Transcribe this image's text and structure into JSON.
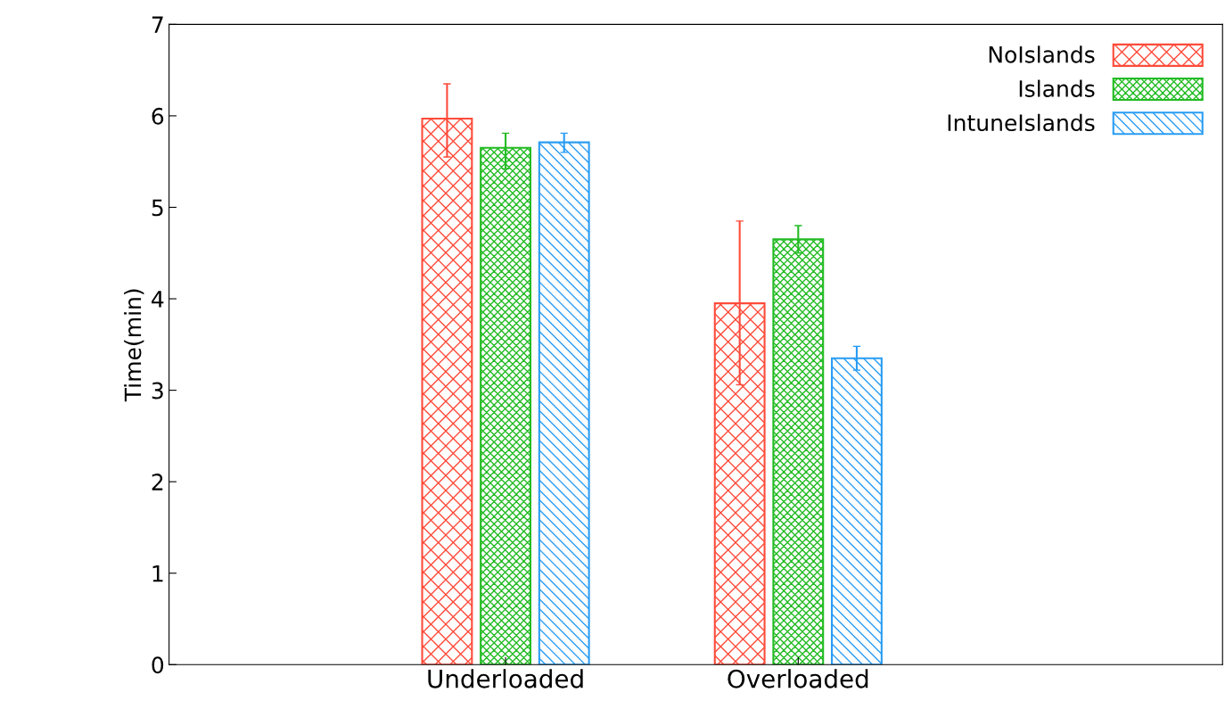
{
  "chart_data": {
    "type": "bar",
    "ylabel": "Time(min)",
    "categories": [
      "Underloaded",
      "Overloaded"
    ],
    "series": [
      {
        "name": "NoIslands",
        "color": "#ff4b3a",
        "values": [
          5.97,
          3.95
        ],
        "errors": [
          [
            5.55,
            6.35
          ],
          [
            3.06,
            4.85
          ]
        ]
      },
      {
        "name": "Islands",
        "color": "#22bb22",
        "values": [
          5.65,
          4.65
        ],
        "errors": [
          [
            5.42,
            5.81
          ],
          [
            4.5,
            4.8
          ]
        ]
      },
      {
        "name": "IntuneIslands",
        "color": "#2a9df4",
        "values": [
          5.71,
          3.35
        ],
        "errors": [
          [
            5.6,
            5.81
          ],
          [
            3.22,
            3.48
          ]
        ]
      }
    ],
    "ylim": [
      0,
      7
    ],
    "yticks": [
      0,
      1,
      2,
      3,
      4,
      5,
      6,
      7
    ],
    "grid": false,
    "legend": "top right"
  }
}
